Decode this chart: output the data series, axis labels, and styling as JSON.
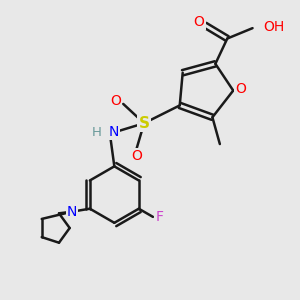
{
  "background_color": "#e8e8e8",
  "bond_color": "#1a1a1a",
  "colors": {
    "O": "#ff0000",
    "N": "#0000ff",
    "S": "#cccc00",
    "F": "#cc44cc",
    "H": "#6a9a9a",
    "C": "#1a1a1a"
  },
  "figsize": [
    3.0,
    3.0
  ],
  "dpi": 100
}
